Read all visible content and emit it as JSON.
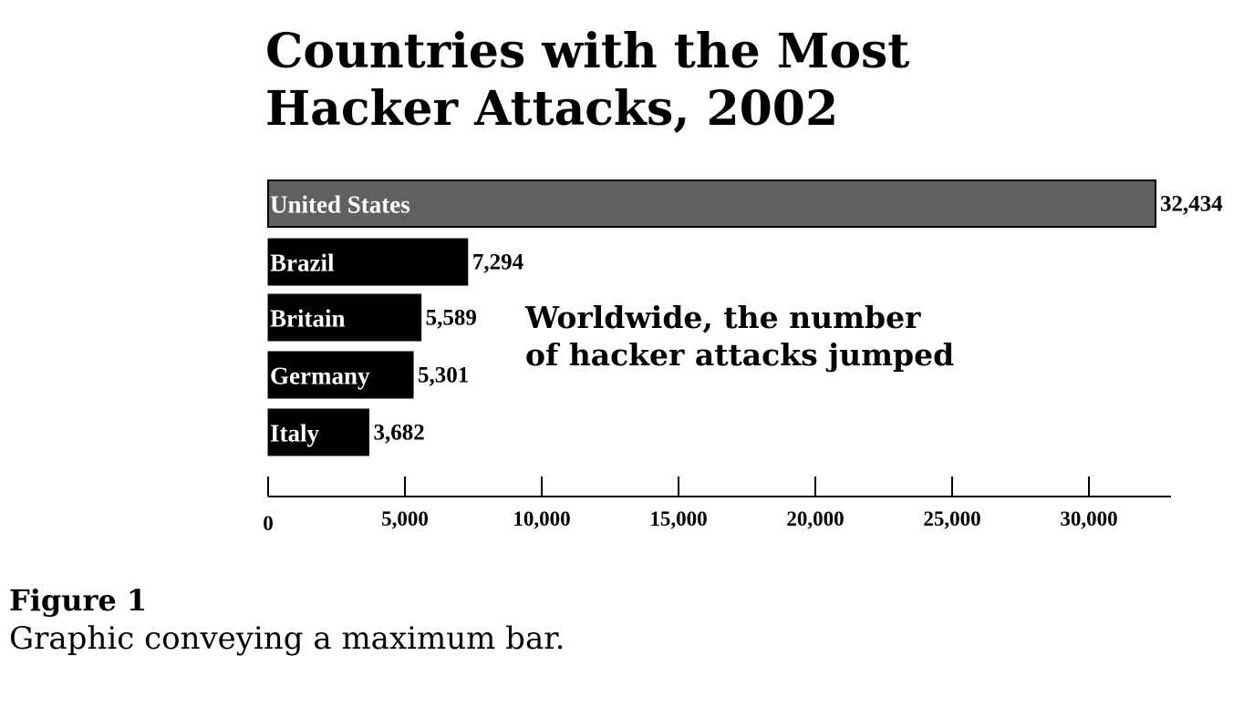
{
  "chart_data": {
    "type": "bar",
    "orientation": "horizontal",
    "title_lines": [
      "Countries with the Most",
      "Hacker Attacks, 2002"
    ],
    "categories": [
      "United States",
      "Brazil",
      "Britain",
      "Germany",
      "Italy"
    ],
    "values": [
      32434,
      7294,
      5589,
      5301,
      3682
    ],
    "value_labels": [
      "32,434",
      "7,294",
      "5,589",
      "5,301",
      "3,682"
    ],
    "x_ticks": [
      0,
      5000,
      10000,
      15000,
      20000,
      25000,
      30000
    ],
    "x_tick_labels": [
      "0",
      "5,000",
      "10,000",
      "15,000",
      "20,000",
      "25,000",
      "30,000"
    ],
    "xlim": [
      0,
      33000
    ],
    "annotation_lines": [
      "Worldwide, the number",
      "of hacker attacks jumped"
    ],
    "colors": {
      "max_bar": "#606060",
      "bar": "#000000",
      "bar_label": "#ffffff"
    },
    "grid": false,
    "legend": "none"
  },
  "caption": {
    "title": "Figure 1",
    "text": "Graphic conveying a maximum bar."
  }
}
